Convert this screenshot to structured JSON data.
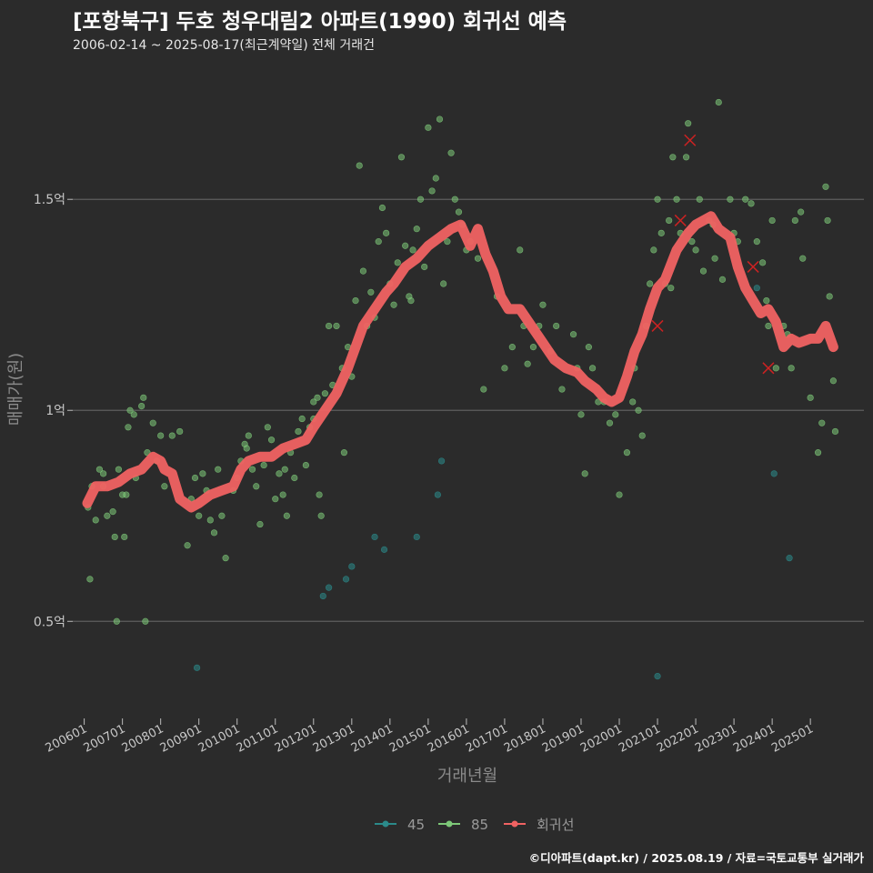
{
  "header": {
    "title": "[포항북구] 두호 청우대림2 아파트(1990) 회귀선 예측",
    "subtitle": "2006-02-14 ~ 2025-08-17(최근계약일) 전체 거래건"
  },
  "footer": {
    "credit": "©디아파트(dapt.kr) / 2025.08.19 / 자료=국토교통부 실거래가"
  },
  "colors": {
    "background": "#2b2b2b",
    "grid": "#5e5e5e",
    "series_45": "#2b8a8a",
    "series_85": "#7dc878",
    "regression": "#f06262",
    "outlier_marker": "#cc2222"
  },
  "chart_data": {
    "type": "scatter",
    "xlabel": "거래년월",
    "ylabel": "매매가(원)",
    "x_ticks": [
      "200601",
      "200701",
      "200801",
      "200901",
      "201001",
      "201101",
      "201201",
      "201301",
      "201401",
      "201501",
      "201601",
      "201701",
      "201801",
      "201901",
      "202001",
      "202101",
      "202201",
      "202301",
      "202401",
      "202501"
    ],
    "y_ticks": [
      {
        "value": 0.5,
        "label": "0.5억"
      },
      {
        "value": 1.0,
        "label": "1억"
      },
      {
        "value": 1.5,
        "label": "1.5억"
      }
    ],
    "xlim": [
      2005.7,
      2026.4
    ],
    "ylim": [
      0.27,
      1.8
    ],
    "grid": "horizontal",
    "legend": {
      "placement": "bottom",
      "entries": [
        {
          "key": "s45",
          "label": "45"
        },
        {
          "key": "s85",
          "label": "85"
        },
        {
          "key": "reg",
          "label": "회귀선"
        }
      ]
    },
    "series": [
      {
        "name": "45",
        "key": "s45",
        "points": [
          [
            2012.25,
            0.56
          ],
          [
            2012.4,
            0.58
          ],
          [
            2012.85,
            0.6
          ],
          [
            2013.0,
            0.63
          ],
          [
            2013.6,
            0.7
          ],
          [
            2013.85,
            0.67
          ],
          [
            2014.7,
            0.7
          ],
          [
            2015.25,
            0.8
          ],
          [
            2015.35,
            0.88
          ],
          [
            2021.0,
            0.37
          ],
          [
            2024.05,
            0.85
          ],
          [
            2024.45,
            0.65
          ],
          [
            2008.95,
            0.39
          ],
          [
            2023.6,
            1.29
          ]
        ]
      },
      {
        "name": "85",
        "key": "s85",
        "points": [
          [
            2006.1,
            0.77
          ],
          [
            2006.15,
            0.6
          ],
          [
            2006.2,
            0.82
          ],
          [
            2006.3,
            0.74
          ],
          [
            2006.4,
            0.86
          ],
          [
            2006.5,
            0.82
          ],
          [
            2006.6,
            0.75
          ],
          [
            2006.75,
            0.76
          ],
          [
            2006.8,
            0.7
          ],
          [
            2006.9,
            0.86
          ],
          [
            2007.0,
            0.8
          ],
          [
            2007.05,
            0.7
          ],
          [
            2007.1,
            0.8
          ],
          [
            2007.15,
            0.96
          ],
          [
            2007.2,
            1.0
          ],
          [
            2007.3,
            0.99
          ],
          [
            2007.35,
            0.84
          ],
          [
            2007.5,
            1.01
          ],
          [
            2007.6,
            0.5
          ],
          [
            2007.65,
            0.9
          ],
          [
            2007.8,
            0.97
          ],
          [
            2008.0,
            0.94
          ],
          [
            2008.1,
            0.82
          ],
          [
            2008.3,
            0.94
          ],
          [
            2008.5,
            0.95
          ],
          [
            2008.7,
            0.68
          ],
          [
            2008.9,
            0.84
          ],
          [
            2009.0,
            0.75
          ],
          [
            2009.1,
            0.85
          ],
          [
            2009.2,
            0.81
          ],
          [
            2009.3,
            0.74
          ],
          [
            2009.4,
            0.71
          ],
          [
            2009.5,
            0.86
          ],
          [
            2009.6,
            0.75
          ],
          [
            2009.7,
            0.65
          ],
          [
            2006.85,
            0.5
          ],
          [
            2007.55,
            1.03
          ],
          [
            2009.9,
            0.81
          ],
          [
            2010.0,
            0.84
          ],
          [
            2010.1,
            0.88
          ],
          [
            2010.2,
            0.92
          ],
          [
            2010.3,
            0.94
          ],
          [
            2010.4,
            0.86
          ],
          [
            2010.5,
            0.82
          ],
          [
            2010.6,
            0.73
          ],
          [
            2010.7,
            0.87
          ],
          [
            2010.8,
            0.96
          ],
          [
            2010.9,
            0.93
          ],
          [
            2011.0,
            0.79
          ],
          [
            2011.1,
            0.85
          ],
          [
            2011.2,
            0.8
          ],
          [
            2011.3,
            0.75
          ],
          [
            2011.4,
            0.9
          ],
          [
            2011.5,
            0.84
          ],
          [
            2011.6,
            0.95
          ],
          [
            2011.7,
            0.98
          ],
          [
            2011.8,
            0.87
          ],
          [
            2011.9,
            0.96
          ],
          [
            2012.0,
            0.98
          ],
          [
            2012.1,
            1.03
          ],
          [
            2012.15,
            0.8
          ],
          [
            2012.2,
            0.75
          ],
          [
            2012.3,
            1.04
          ],
          [
            2012.4,
            1.2
          ],
          [
            2012.5,
            1.06
          ],
          [
            2012.6,
            1.2
          ],
          [
            2012.75,
            1.1
          ],
          [
            2012.8,
            0.9
          ],
          [
            2012.9,
            1.15
          ],
          [
            2013.0,
            1.08
          ],
          [
            2013.1,
            1.26
          ],
          [
            2013.2,
            1.58
          ],
          [
            2013.3,
            1.33
          ],
          [
            2013.4,
            1.2
          ],
          [
            2013.5,
            1.28
          ],
          [
            2013.6,
            1.22
          ],
          [
            2013.7,
            1.4
          ],
          [
            2013.8,
            1.48
          ],
          [
            2013.9,
            1.42
          ],
          [
            2014.0,
            1.3
          ],
          [
            2014.1,
            1.25
          ],
          [
            2014.2,
            1.35
          ],
          [
            2014.3,
            1.6
          ],
          [
            2014.4,
            1.39
          ],
          [
            2014.5,
            1.27
          ],
          [
            2014.6,
            1.38
          ],
          [
            2014.7,
            1.43
          ],
          [
            2014.8,
            1.5
          ],
          [
            2014.9,
            1.34
          ],
          [
            2015.0,
            1.67
          ],
          [
            2015.1,
            1.52
          ],
          [
            2015.2,
            1.55
          ],
          [
            2015.3,
            1.69
          ],
          [
            2015.4,
            1.3
          ],
          [
            2015.5,
            1.4
          ],
          [
            2015.6,
            1.61
          ],
          [
            2015.7,
            1.5
          ],
          [
            2015.8,
            1.47
          ],
          [
            2016.0,
            1.38
          ],
          [
            2016.1,
            1.4
          ],
          [
            2016.3,
            1.36
          ],
          [
            2016.45,
            1.05
          ],
          [
            2016.8,
            1.27
          ],
          [
            2017.0,
            1.1
          ],
          [
            2017.2,
            1.15
          ],
          [
            2017.4,
            1.38
          ],
          [
            2017.5,
            1.2
          ],
          [
            2017.6,
            1.11
          ],
          [
            2017.75,
            1.15
          ],
          [
            2017.9,
            1.2
          ],
          [
            2018.0,
            1.25
          ],
          [
            2018.2,
            1.14
          ],
          [
            2018.5,
            1.05
          ],
          [
            2018.8,
            1.18
          ],
          [
            2018.9,
            1.1
          ],
          [
            2019.0,
            0.99
          ],
          [
            2019.1,
            0.85
          ],
          [
            2019.2,
            1.15
          ],
          [
            2019.3,
            1.1
          ],
          [
            2019.45,
            1.02
          ],
          [
            2019.6,
            1.02
          ],
          [
            2019.75,
            0.97
          ],
          [
            2019.9,
            0.99
          ],
          [
            2020.0,
            0.8
          ],
          [
            2020.2,
            0.9
          ],
          [
            2020.4,
            1.1
          ],
          [
            2020.5,
            1.0
          ],
          [
            2020.6,
            0.94
          ],
          [
            2020.7,
            1.2
          ],
          [
            2020.8,
            1.3
          ],
          [
            2020.9,
            1.38
          ],
          [
            2021.0,
            1.5
          ],
          [
            2021.1,
            1.42
          ],
          [
            2021.2,
            1.3
          ],
          [
            2021.3,
            1.45
          ],
          [
            2021.4,
            1.6
          ],
          [
            2021.5,
            1.5
          ],
          [
            2021.6,
            1.42
          ],
          [
            2021.75,
            1.6
          ],
          [
            2021.8,
            1.68
          ],
          [
            2021.9,
            1.4
          ],
          [
            2022.0,
            1.38
          ],
          [
            2022.1,
            1.5
          ],
          [
            2022.2,
            1.33
          ],
          [
            2022.35,
            1.45
          ],
          [
            2022.5,
            1.36
          ],
          [
            2022.6,
            1.73
          ],
          [
            2022.7,
            1.31
          ],
          [
            2022.9,
            1.5
          ],
          [
            2023.0,
            1.42
          ],
          [
            2023.1,
            1.4
          ],
          [
            2023.3,
            1.5
          ],
          [
            2023.45,
            1.49
          ],
          [
            2023.6,
            1.4
          ],
          [
            2023.75,
            1.35
          ],
          [
            2023.9,
            1.2
          ],
          [
            2024.0,
            1.45
          ],
          [
            2024.1,
            1.1
          ],
          [
            2024.3,
            1.2
          ],
          [
            2024.5,
            1.1
          ],
          [
            2024.6,
            1.45
          ],
          [
            2024.75,
            1.47
          ],
          [
            2024.8,
            1.36
          ],
          [
            2025.0,
            1.03
          ],
          [
            2025.2,
            0.9
          ],
          [
            2025.3,
            0.97
          ],
          [
            2025.4,
            1.53
          ],
          [
            2025.45,
            1.45
          ],
          [
            2025.5,
            1.27
          ],
          [
            2025.6,
            1.07
          ],
          [
            2025.65,
            0.95
          ],
          [
            2006.5,
            0.85
          ],
          [
            2007.9,
            0.88
          ],
          [
            2008.8,
            0.79
          ],
          [
            2010.25,
            0.91
          ],
          [
            2011.25,
            0.86
          ],
          [
            2012.0,
            1.02
          ],
          [
            2014.55,
            1.26
          ],
          [
            2015.9,
            1.44
          ],
          [
            2018.35,
            1.2
          ],
          [
            2020.35,
            1.02
          ],
          [
            2021.35,
            1.29
          ],
          [
            2022.45,
            1.44
          ],
          [
            2023.85,
            1.26
          ],
          [
            2024.4,
            1.18
          ]
        ]
      }
    ],
    "outliers": [
      [
        2021.0,
        1.2
      ],
      [
        2021.6,
        1.45
      ],
      [
        2021.85,
        1.64
      ],
      [
        2023.5,
        1.34
      ],
      [
        2023.9,
        1.1
      ]
    ],
    "regression": {
      "name": "회귀선",
      "key": "reg",
      "points": [
        [
          2006.08,
          0.78
        ],
        [
          2006.3,
          0.82
        ],
        [
          2006.6,
          0.82
        ],
        [
          2006.9,
          0.83
        ],
        [
          2007.2,
          0.85
        ],
        [
          2007.5,
          0.86
        ],
        [
          2007.8,
          0.89
        ],
        [
          2008.0,
          0.88
        ],
        [
          2008.1,
          0.86
        ],
        [
          2008.3,
          0.85
        ],
        [
          2008.5,
          0.79
        ],
        [
          2008.8,
          0.77
        ],
        [
          2009.0,
          0.78
        ],
        [
          2009.3,
          0.8
        ],
        [
          2009.6,
          0.81
        ],
        [
          2009.9,
          0.82
        ],
        [
          2010.1,
          0.86
        ],
        [
          2010.3,
          0.88
        ],
        [
          2010.6,
          0.89
        ],
        [
          2010.9,
          0.89
        ],
        [
          2011.2,
          0.91
        ],
        [
          2011.5,
          0.92
        ],
        [
          2011.8,
          0.93
        ],
        [
          2012.0,
          0.96
        ],
        [
          2012.3,
          1.0
        ],
        [
          2012.6,
          1.04
        ],
        [
          2012.9,
          1.1
        ],
        [
          2013.1,
          1.15
        ],
        [
          2013.3,
          1.2
        ],
        [
          2013.6,
          1.24
        ],
        [
          2013.9,
          1.28
        ],
        [
          2014.1,
          1.3
        ],
        [
          2014.4,
          1.34
        ],
        [
          2014.7,
          1.36
        ],
        [
          2015.0,
          1.39
        ],
        [
          2015.3,
          1.41
        ],
        [
          2015.6,
          1.43
        ],
        [
          2015.85,
          1.44
        ],
        [
          2016.0,
          1.41
        ],
        [
          2016.1,
          1.39
        ],
        [
          2016.3,
          1.43
        ],
        [
          2016.5,
          1.37
        ],
        [
          2016.7,
          1.33
        ],
        [
          2016.9,
          1.27
        ],
        [
          2017.1,
          1.24
        ],
        [
          2017.4,
          1.24
        ],
        [
          2017.7,
          1.2
        ],
        [
          2018.0,
          1.16
        ],
        [
          2018.3,
          1.12
        ],
        [
          2018.6,
          1.1
        ],
        [
          2018.9,
          1.09
        ],
        [
          2019.1,
          1.07
        ],
        [
          2019.4,
          1.05
        ],
        [
          2019.6,
          1.03
        ],
        [
          2019.8,
          1.02
        ],
        [
          2020.0,
          1.03
        ],
        [
          2020.2,
          1.08
        ],
        [
          2020.4,
          1.14
        ],
        [
          2020.6,
          1.18
        ],
        [
          2020.8,
          1.24
        ],
        [
          2021.0,
          1.29
        ],
        [
          2021.2,
          1.31
        ],
        [
          2021.5,
          1.38
        ],
        [
          2021.8,
          1.42
        ],
        [
          2022.0,
          1.44
        ],
        [
          2022.2,
          1.45
        ],
        [
          2022.4,
          1.46
        ],
        [
          2022.6,
          1.43
        ],
        [
          2022.9,
          1.41
        ],
        [
          2023.1,
          1.34
        ],
        [
          2023.3,
          1.29
        ],
        [
          2023.5,
          1.26
        ],
        [
          2023.7,
          1.23
        ],
        [
          2023.9,
          1.24
        ],
        [
          2024.1,
          1.21
        ],
        [
          2024.3,
          1.15
        ],
        [
          2024.5,
          1.17
        ],
        [
          2024.7,
          1.16
        ],
        [
          2025.0,
          1.17
        ],
        [
          2025.2,
          1.17
        ],
        [
          2025.4,
          1.2
        ],
        [
          2025.6,
          1.15
        ]
      ]
    }
  }
}
